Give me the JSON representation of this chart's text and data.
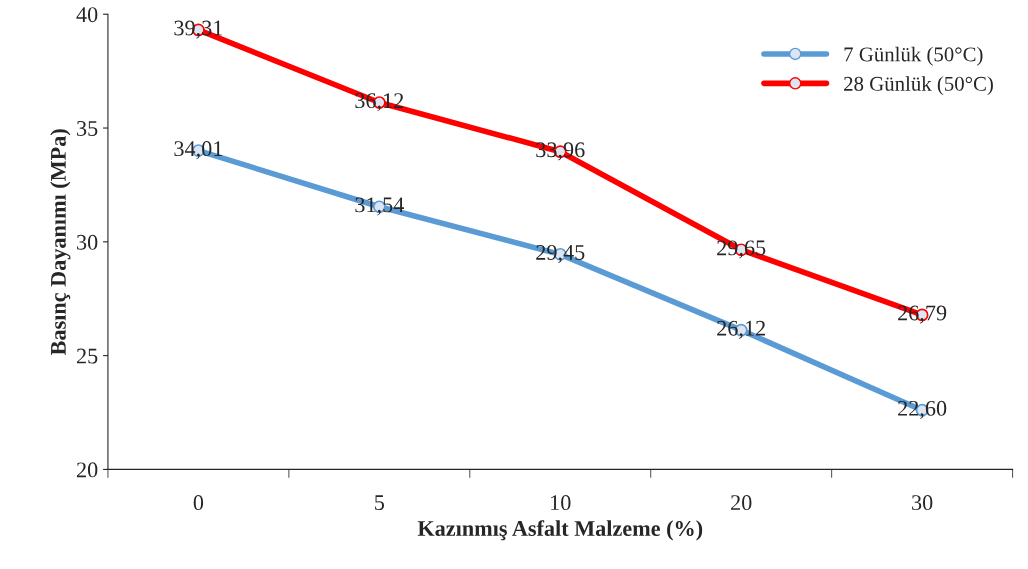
{
  "chart_data": {
    "type": "line",
    "xlabel": "Kazınmış Asfalt Malzeme (%)",
    "ylabel": "Basınç Dayanımı (MPa)",
    "categories": [
      "0",
      "5",
      "10",
      "20",
      "30"
    ],
    "series": [
      {
        "name": "7 Günlük (50°C)",
        "color": "#5b9bd5",
        "values": [
          34.01,
          31.54,
          29.45,
          26.12,
          22.6
        ],
        "value_labels": [
          "34,01",
          "31,54",
          "29,45",
          "26,12",
          "22,60"
        ]
      },
      {
        "name": "28 Günlük (50°C)",
        "color": "#ff0000",
        "values": [
          39.31,
          36.12,
          33.96,
          29.65,
          26.79
        ],
        "value_labels": [
          "39,31",
          "36,12",
          "33,96",
          "29,65",
          "26,79"
        ]
      }
    ],
    "ylim": [
      20,
      40
    ],
    "yticks": [
      20,
      25,
      30,
      35,
      40
    ],
    "grid": false,
    "legend": "top right",
    "marker": "circle",
    "line_style": "solid"
  }
}
